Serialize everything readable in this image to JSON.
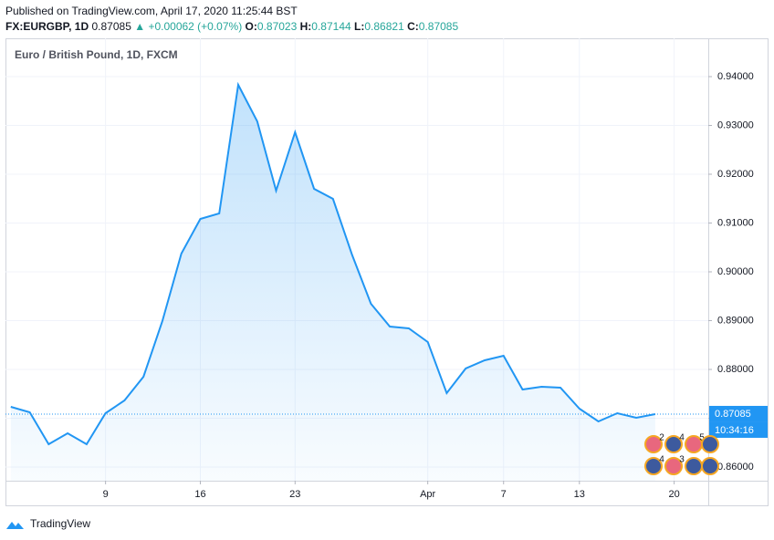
{
  "header": {
    "published": "Published on TradingView.com, April 17, 2020 11:25:44 BST",
    "symbol": "FX:EURGBP, 1D",
    "price": "0.87085",
    "change": "+0.00062 (+0.07%)",
    "o_label": "O:",
    "o": "0.87023",
    "h_label": "H:",
    "h": "0.87144",
    "l_label": "L:",
    "l": "0.86821",
    "c_label": "C:",
    "c": "0.87085"
  },
  "chart_data": {
    "type": "area",
    "title": "Euro / British Pound, 1D, FXCM",
    "color": "#2196f3",
    "values": [
      0.87234,
      0.87121,
      0.86467,
      0.86692,
      0.86467,
      0.87103,
      0.87364,
      0.8785,
      0.88991,
      0.90374,
      0.91084,
      0.91196,
      0.93832,
      0.93084,
      0.91664,
      0.9286,
      0.91701,
      0.91495,
      0.90355,
      0.89346,
      0.88879,
      0.88841,
      0.88561,
      0.87514,
      0.88019,
      0.88187,
      0.8828,
      0.87589,
      0.87645,
      0.87626,
      0.87196,
      0.86935,
      0.87103,
      0.87009,
      0.87085
    ],
    "xlim": [
      -0.28,
      36.8
    ],
    "xticks": [
      {
        "value": 5,
        "label": "9"
      },
      {
        "value": 10,
        "label": "16"
      },
      {
        "value": 15,
        "label": "23"
      },
      {
        "value": 22,
        "label": "Apr"
      },
      {
        "value": 26,
        "label": "7"
      },
      {
        "value": 30,
        "label": "13"
      },
      {
        "value": 35,
        "label": "20"
      }
    ],
    "ylim": [
      0.8572,
      0.94785
    ],
    "yticks": [
      {
        "value": 0.86,
        "label": "0.86000"
      },
      {
        "value": 0.87,
        "label": "0.87000"
      },
      {
        "value": 0.88,
        "label": "0.88000"
      },
      {
        "value": 0.89,
        "label": "0.89000"
      },
      {
        "value": 0.9,
        "label": "0.90000"
      },
      {
        "value": 0.91,
        "label": "0.91000"
      },
      {
        "value": 0.92,
        "label": "0.92000"
      },
      {
        "value": 0.93,
        "label": "0.93000"
      },
      {
        "value": 0.94,
        "label": "0.94000"
      }
    ],
    "grid": true,
    "last_price": 0.87085,
    "countdown": "10:34:16"
  },
  "events": [
    "2",
    "4",
    "5",
    "4",
    "3"
  ],
  "footer": {
    "brand": "TradingView"
  }
}
